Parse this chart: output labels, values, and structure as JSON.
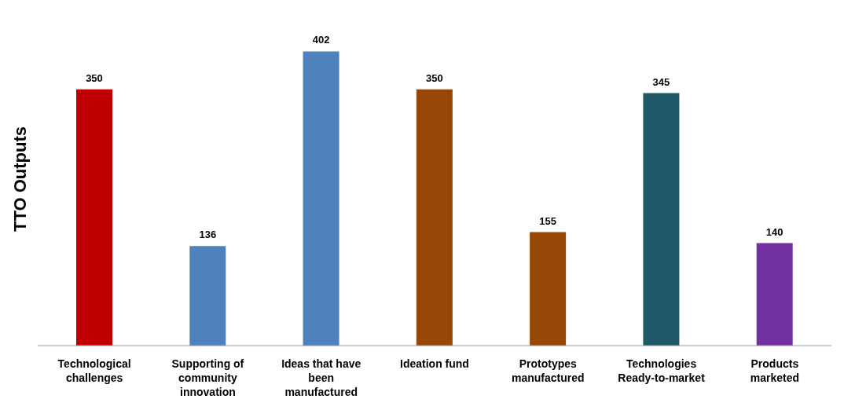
{
  "chart_data": {
    "type": "bar",
    "ylabel": "TTO Outputs",
    "categories": [
      "Technological challenges",
      "Supporting  of community innovation",
      "Ideas that have been manufactured",
      "Ideation fund",
      "Prototypes manufactured",
      "Technologies Ready-to-market",
      "Products marketed"
    ],
    "values": [
      350,
      136,
      402,
      350,
      155,
      345,
      140
    ],
    "colors": [
      "#c00000",
      "#4f81bd",
      "#4f81bd",
      "#974706",
      "#974706",
      "#215968",
      "#7030a0"
    ],
    "data_labels": true,
    "tick_labels": "x"
  }
}
